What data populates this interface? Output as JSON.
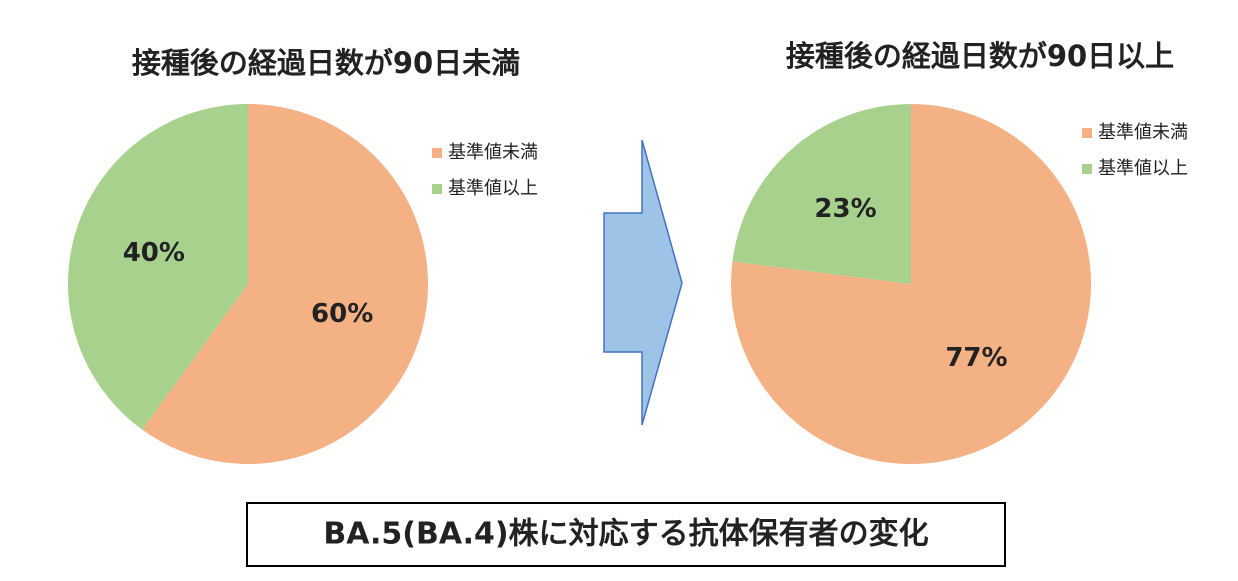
{
  "chart_data": [
    {
      "type": "pie",
      "title": "接種後の経過日数が90日未満",
      "categories": [
        "基準値未満",
        "基準値以上"
      ],
      "values": [
        60,
        40
      ],
      "value_labels": [
        "60%",
        "40%"
      ],
      "colors": [
        "#f4b183",
        "#a9d18e"
      ]
    },
    {
      "type": "pie",
      "title": "接種後の経過日数が90日以上",
      "categories": [
        "基準値未満",
        "基準値以上"
      ],
      "values": [
        77,
        23
      ],
      "value_labels": [
        "77%",
        "23%"
      ],
      "colors": [
        "#f4b183",
        "#a9d18e"
      ]
    }
  ],
  "caption": "BA.5(BA.4)株に対応する抗体保有者の変化"
}
